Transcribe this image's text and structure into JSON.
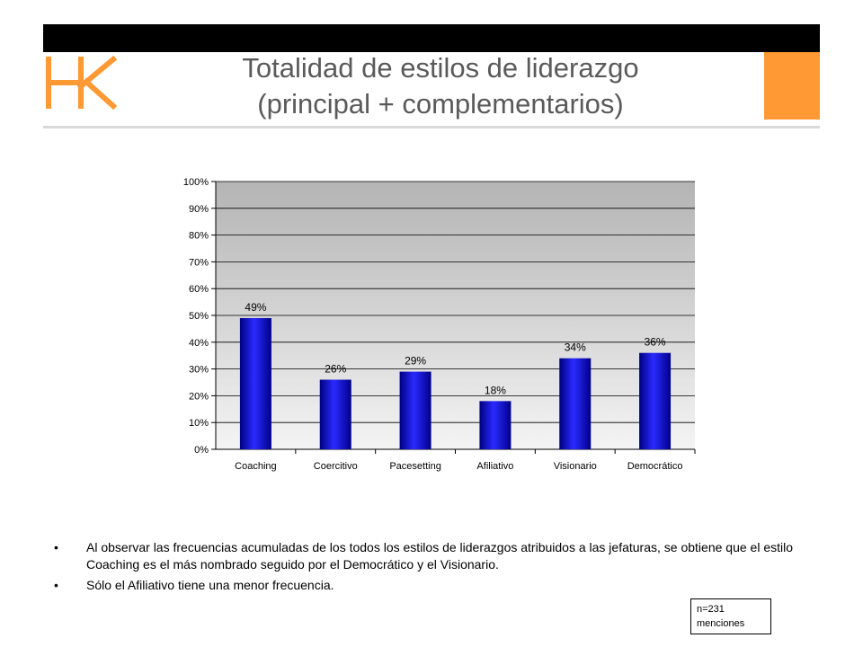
{
  "slide": {
    "logo_text": "HK",
    "title_line1": "Totalidad de estilos de liderazgo",
    "title_line2": "(principal + complementarios)",
    "bullets": [
      "Al observar las frecuencias acumuladas de los todos los estilos de liderazgos atribuidos a las jefaturas, se obtiene que el estilo Coaching es el más nombrado seguido por el Democrático y el Visionario.",
      "Sólo el Afiliativo tiene una menor frecuencia."
    ],
    "bullet_symbol": "•",
    "n_note_line1": "n=231",
    "n_note_line2": "menciones"
  },
  "colors": {
    "accent": "#ff9933",
    "top_bar": "#000000",
    "bar": "#1a1aee",
    "title": "#5a5a5a"
  },
  "chart_data": {
    "type": "bar",
    "categories": [
      "Coaching",
      "Coercitivo",
      "Pacesetting",
      "Afiliativo",
      "Visionario",
      "Democrático"
    ],
    "values": [
      49,
      26,
      29,
      18,
      34,
      36
    ],
    "data_labels": [
      "49%",
      "26%",
      "29%",
      "18%",
      "34%",
      "36%"
    ],
    "title": "",
    "xlabel": "",
    "ylabel": "",
    "ylim": [
      0,
      100
    ],
    "yticks": [
      0,
      10,
      20,
      30,
      40,
      50,
      60,
      70,
      80,
      90,
      100
    ],
    "ytick_labels": [
      "0%",
      "10%",
      "20%",
      "30%",
      "40%",
      "50%",
      "60%",
      "70%",
      "80%",
      "90%",
      "100%"
    ],
    "grid": true,
    "legend": "none"
  }
}
